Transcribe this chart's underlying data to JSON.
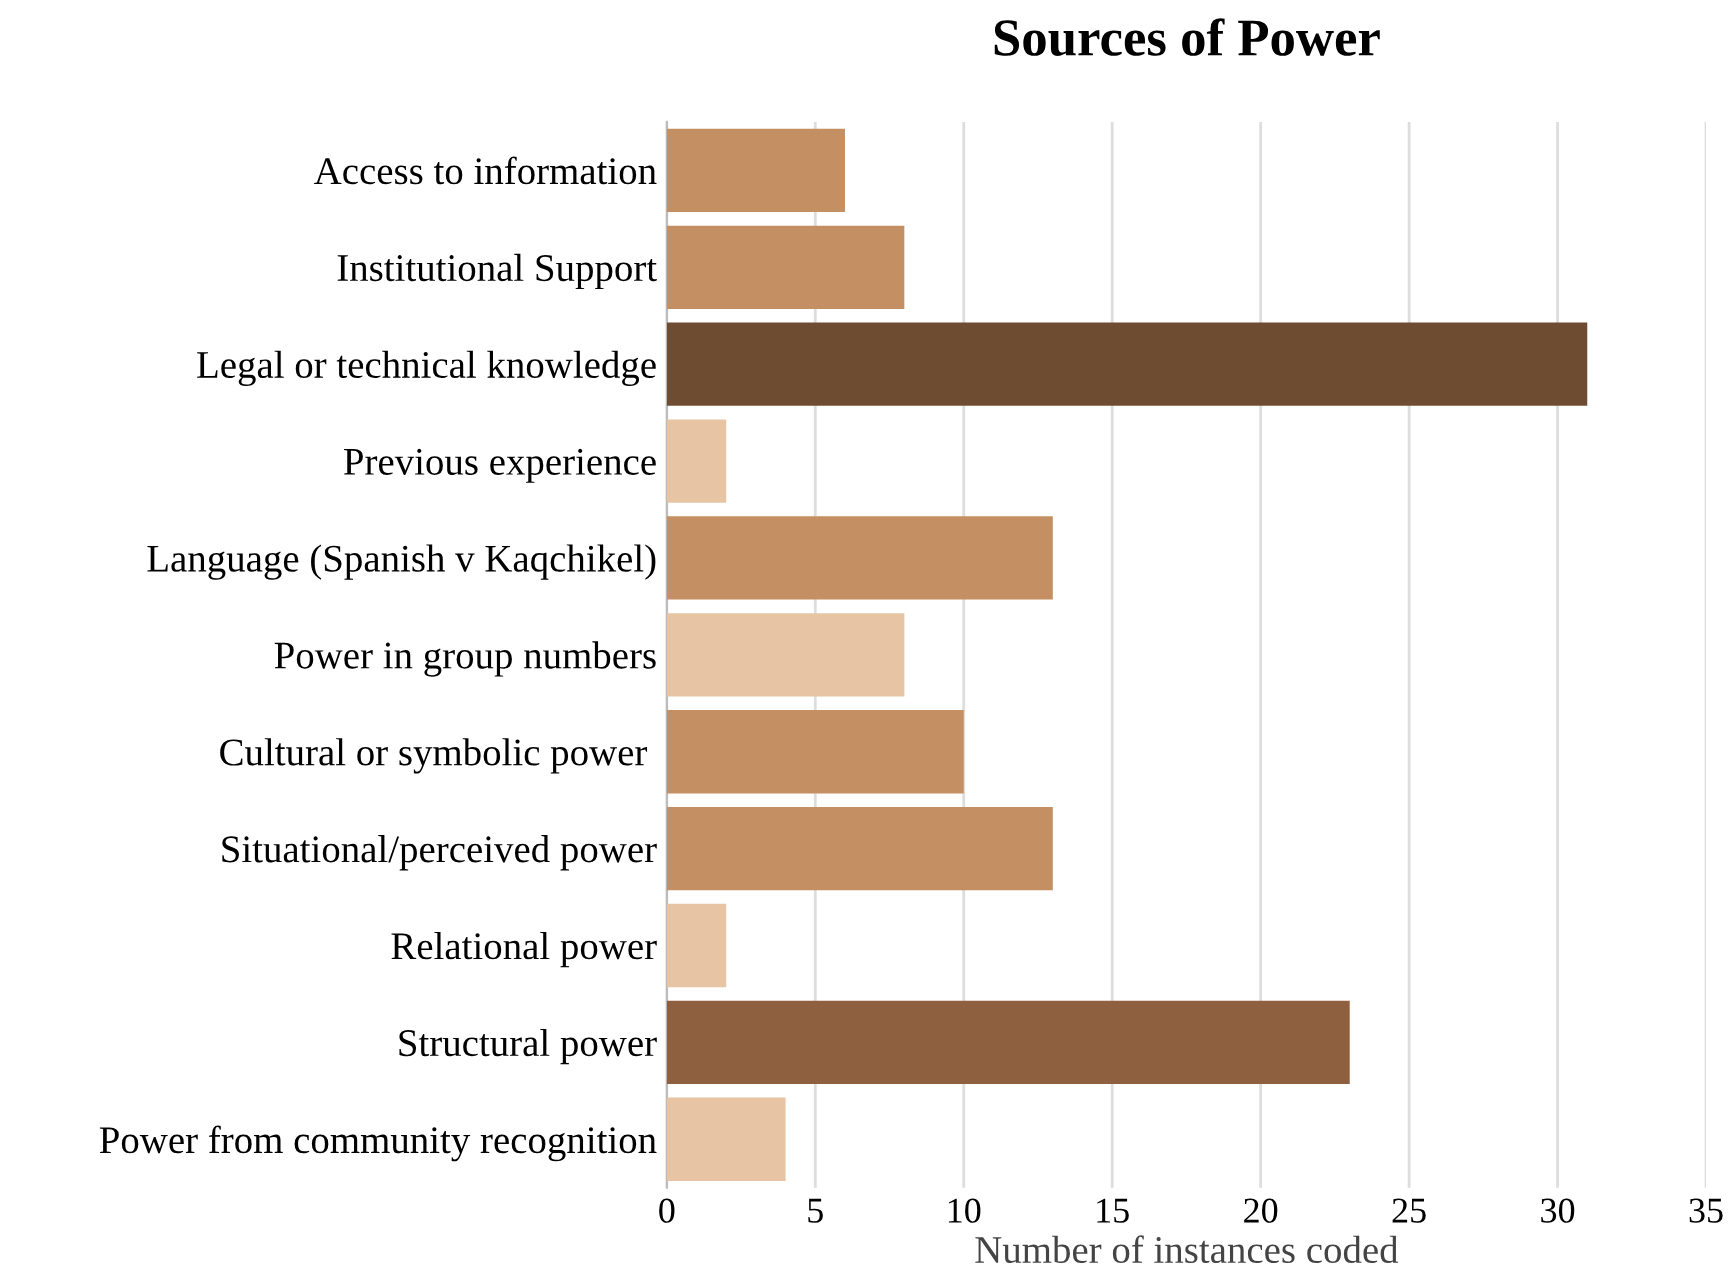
{
  "chart_data": {
    "type": "bar",
    "orientation": "horizontal",
    "title": "Sources of Power",
    "xlabel": "Number of instances coded",
    "categories": [
      "Access to information",
      "Institutional Support",
      "Legal or technical knowledge",
      "Previous experience",
      "Language (Spanish v Kaqchikel)",
      "Power in group numbers",
      "Cultural or symbolic power ",
      "Situational/perceived power",
      "Relational power",
      "Structural power",
      "Power from community recognition"
    ],
    "values": [
      6,
      8,
      31,
      2,
      13,
      8,
      10,
      13,
      2,
      23,
      4
    ],
    "colors": [
      "#c48f62",
      "#c48f62",
      "#6e4c32",
      "#e6c4a4",
      "#c48f62",
      "#e6c4a4",
      "#c48f62",
      "#c48f62",
      "#e6c4a4",
      "#8f6040",
      "#e6c4a4"
    ],
    "xlim": [
      0,
      35
    ],
    "xticks": [
      0,
      5,
      10,
      15,
      20,
      25,
      30,
      35
    ],
    "grid": "x"
  }
}
